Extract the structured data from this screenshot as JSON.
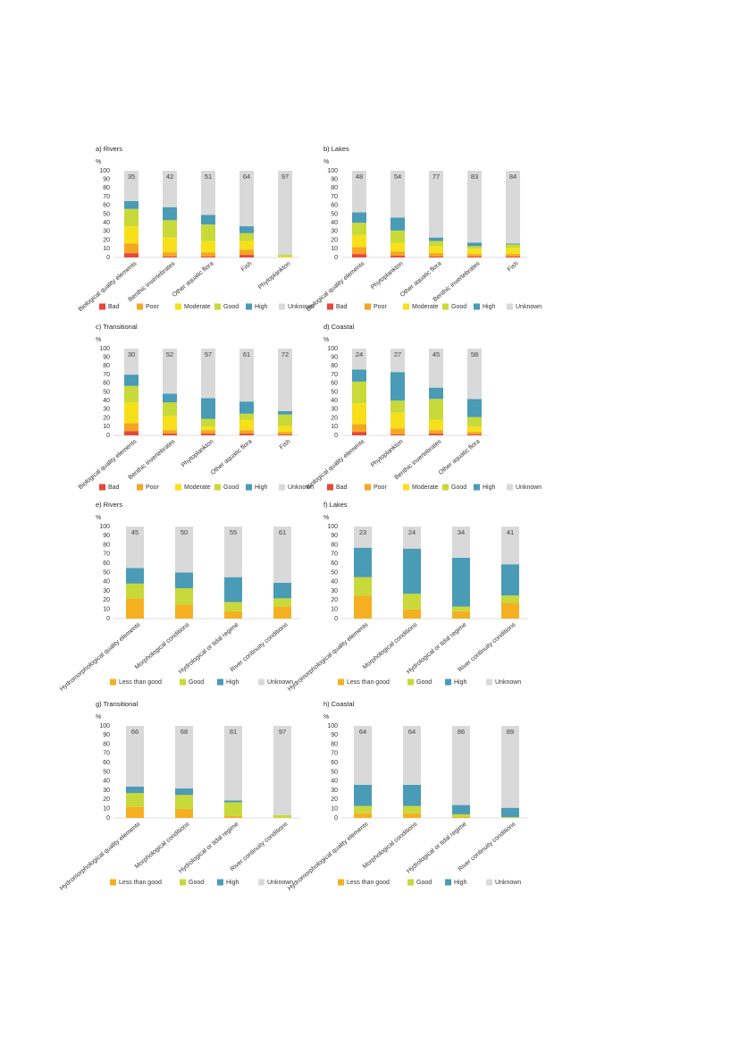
{
  "chart_data": [
    {
      "type": "bar",
      "title": "a) Rivers",
      "y_label": "%",
      "ylim": [
        0,
        100
      ],
      "yticks": [
        0,
        10,
        20,
        30,
        40,
        50,
        60,
        70,
        80,
        90,
        100
      ],
      "categories": [
        "Biological quality elements",
        "Benthic invertebrates",
        "Other aquatic flora",
        "Fish",
        "Phytoplankton"
      ],
      "series": [
        {
          "name": "Bad",
          "color": "#e8473a",
          "values": [
            5,
            1,
            1,
            3,
            0
          ]
        },
        {
          "name": "Poor",
          "color": "#f5a623",
          "values": [
            11,
            5,
            5,
            6,
            0
          ]
        },
        {
          "name": "Moderate",
          "color": "#f7e01a",
          "values": [
            20,
            17,
            13,
            10,
            1
          ]
        },
        {
          "name": "Good",
          "color": "#c8d93a",
          "values": [
            20,
            20,
            19,
            9,
            2
          ]
        },
        {
          "name": "High",
          "color": "#4a9bb5",
          "values": [
            9,
            15,
            11,
            8,
            0
          ]
        },
        {
          "name": "Unknown",
          "color": "#d9d9d9",
          "values": [
            35,
            42,
            51,
            64,
            97
          ]
        }
      ]
    },
    {
      "type": "bar",
      "title": "b) Lakes",
      "y_label": "%",
      "ylim": [
        0,
        100
      ],
      "yticks": [
        0,
        10,
        20,
        30,
        40,
        50,
        60,
        70,
        80,
        90,
        100
      ],
      "categories": [
        "Biological quality elements",
        "Phytoplankton",
        "Other aquatic flora",
        "Benthic invertebrates",
        "Fish"
      ],
      "series": [
        {
          "name": "Bad",
          "color": "#e8473a",
          "values": [
            4,
            2,
            1,
            1,
            1
          ]
        },
        {
          "name": "Poor",
          "color": "#f5a623",
          "values": [
            8,
            5,
            4,
            3,
            3
          ]
        },
        {
          "name": "Moderate",
          "color": "#f7e01a",
          "values": [
            14,
            10,
            8,
            6,
            7
          ]
        },
        {
          "name": "Good",
          "color": "#c8d93a",
          "values": [
            14,
            14,
            6,
            3,
            4
          ]
        },
        {
          "name": "High",
          "color": "#4a9bb5",
          "values": [
            12,
            15,
            4,
            4,
            1
          ]
        },
        {
          "name": "Unknown",
          "color": "#d9d9d9",
          "values": [
            48,
            54,
            77,
            83,
            84
          ]
        }
      ]
    },
    {
      "type": "bar",
      "title": "c) Transitional",
      "y_label": "%",
      "ylim": [
        0,
        100
      ],
      "yticks": [
        0,
        10,
        20,
        30,
        40,
        50,
        60,
        70,
        80,
        90,
        100
      ],
      "categories": [
        "Biological quality elements",
        "Benthic invertebrates",
        "Phytoplankton",
        "Other aquatic flora",
        "Fish"
      ],
      "series": [
        {
          "name": "Bad",
          "color": "#e8473a",
          "values": [
            5,
            2,
            2,
            2,
            1
          ]
        },
        {
          "name": "Poor",
          "color": "#f5a623",
          "values": [
            9,
            4,
            4,
            4,
            3
          ]
        },
        {
          "name": "Moderate",
          "color": "#f7e01a",
          "values": [
            24,
            16,
            4,
            12,
            7
          ]
        },
        {
          "name": "Good",
          "color": "#c8d93a",
          "values": [
            19,
            16,
            9,
            7,
            13
          ]
        },
        {
          "name": "High",
          "color": "#4a9bb5",
          "values": [
            13,
            10,
            24,
            14,
            4
          ]
        },
        {
          "name": "Unknown",
          "color": "#d9d9d9",
          "values": [
            30,
            52,
            57,
            61,
            72
          ]
        }
      ]
    },
    {
      "type": "bar",
      "title": "d) Coastal",
      "y_label": "%",
      "ylim": [
        0,
        100
      ],
      "yticks": [
        0,
        10,
        20,
        30,
        40,
        50,
        60,
        70,
        80,
        90,
        100
      ],
      "categories": [
        "Biological quality elements",
        "Phytoplankton",
        "Benthic invertebrates",
        "Other aquatic flora"
      ],
      "series": [
        {
          "name": "Bad",
          "color": "#e8473a",
          "values": [
            4,
            1,
            2,
            1
          ]
        },
        {
          "name": "Poor",
          "color": "#f5a623",
          "values": [
            9,
            7,
            4,
            3
          ]
        },
        {
          "name": "Moderate",
          "color": "#f7e01a",
          "values": [
            24,
            18,
            12,
            6
          ]
        },
        {
          "name": "Good",
          "color": "#c8d93a",
          "values": [
            25,
            14,
            24,
            11
          ]
        },
        {
          "name": "High",
          "color": "#4a9bb5",
          "values": [
            14,
            33,
            13,
            21
          ]
        },
        {
          "name": "Unknown",
          "color": "#d9d9d9",
          "values": [
            24,
            27,
            45,
            58
          ]
        }
      ]
    },
    {
      "type": "bar",
      "title": "e) Rivers",
      "y_label": "%",
      "ylim": [
        0,
        100
      ],
      "yticks": [
        0,
        10,
        20,
        30,
        40,
        50,
        60,
        70,
        80,
        90,
        100
      ],
      "categories": [
        "Hydromorphological quality elements",
        "Morphological conditions",
        "Hydrological or tidal regime",
        "River continuity conditions"
      ],
      "series": [
        {
          "name": "Less than good",
          "color": "#f5b021",
          "values": [
            22,
            15,
            8,
            13
          ]
        },
        {
          "name": "Good",
          "color": "#c8d93a",
          "values": [
            16,
            18,
            10,
            9
          ]
        },
        {
          "name": "High",
          "color": "#4a9bb5",
          "values": [
            17,
            17,
            27,
            17
          ]
        },
        {
          "name": "Unknown",
          "color": "#d9d9d9",
          "values": [
            45,
            50,
            55,
            61
          ]
        }
      ]
    },
    {
      "type": "bar",
      "title": "f) Lakes",
      "y_label": "%",
      "ylim": [
        0,
        100
      ],
      "yticks": [
        0,
        10,
        20,
        30,
        40,
        50,
        60,
        70,
        80,
        90,
        100
      ],
      "categories": [
        "Hydromorphological quality elements",
        "Morphological conditions",
        "Hydrological or tidal regime",
        "River continuity conditions"
      ],
      "series": [
        {
          "name": "Less than good",
          "color": "#f5b021",
          "values": [
            25,
            10,
            8,
            17
          ]
        },
        {
          "name": "Good",
          "color": "#c8d93a",
          "values": [
            20,
            17,
            5,
            8
          ]
        },
        {
          "name": "High",
          "color": "#4a9bb5",
          "values": [
            32,
            49,
            53,
            34
          ]
        },
        {
          "name": "Unknown",
          "color": "#d9d9d9",
          "values": [
            23,
            24,
            34,
            41
          ]
        }
      ]
    },
    {
      "type": "bar",
      "title": "g) Transitional",
      "y_label": "%",
      "ylim": [
        0,
        100
      ],
      "yticks": [
        0,
        10,
        20,
        30,
        40,
        50,
        60,
        70,
        80,
        90,
        100
      ],
      "categories": [
        "Hydromorphological quality elements",
        "Morphological conditions",
        "Hydrological or tidal regime",
        "River continuity conditions"
      ],
      "series": [
        {
          "name": "Less than good",
          "color": "#f5b021",
          "values": [
            12,
            10,
            2,
            0
          ]
        },
        {
          "name": "Good",
          "color": "#c8d93a",
          "values": [
            15,
            15,
            15,
            3
          ]
        },
        {
          "name": "High",
          "color": "#4a9bb5",
          "values": [
            7,
            7,
            2,
            0
          ]
        },
        {
          "name": "Unknown",
          "color": "#d9d9d9",
          "values": [
            66,
            68,
            81,
            97
          ]
        }
      ]
    },
    {
      "type": "bar",
      "title": "h) Coastal",
      "y_label": "%",
      "ylim": [
        0,
        100
      ],
      "yticks": [
        0,
        10,
        20,
        30,
        40,
        50,
        60,
        70,
        80,
        90,
        100
      ],
      "categories": [
        "Hydromorphological quality elements",
        "Morphological conditions",
        "Hydrological or tidal regime",
        "River continuity conditions"
      ],
      "series": [
        {
          "name": "Less than good",
          "color": "#f5b021",
          "values": [
            5,
            5,
            1,
            0
          ]
        },
        {
          "name": "Good",
          "color": "#c8d93a",
          "values": [
            8,
            8,
            3,
            1
          ]
        },
        {
          "name": "High",
          "color": "#4a9bb5",
          "values": [
            23,
            23,
            10,
            10
          ]
        },
        {
          "name": "Unknown",
          "color": "#d9d9d9",
          "values": [
            64,
            64,
            86,
            89
          ]
        }
      ]
    }
  ]
}
